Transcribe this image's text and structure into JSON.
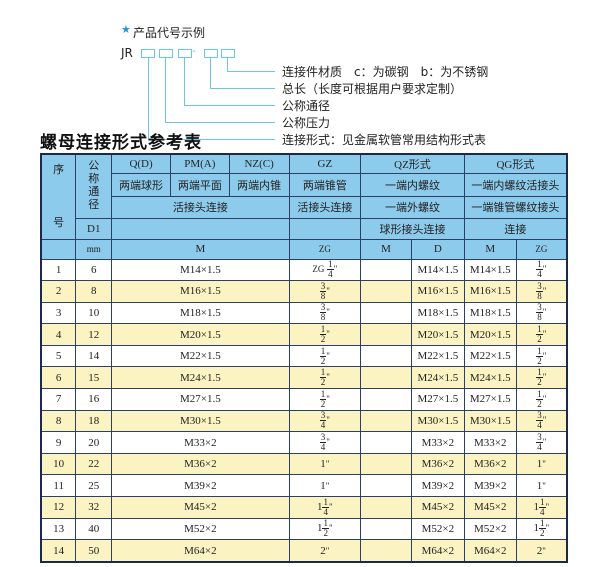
{
  "code_example": {
    "title": "产品代号示例",
    "star_icon": "star-icon",
    "prefix": "JR",
    "dash": "-",
    "labels": [
      "连接件材质　c：为碳钢　b：为不锈钢",
      "总长（长度可根据用户要求定制）",
      "公称通径",
      "公称压力",
      "连接形式：见金属软管常用结构形式表"
    ]
  },
  "table_title": "螺母连接形式参考表",
  "header": {
    "seq": "序号",
    "nominal": "公称通径",
    "d1": "D1",
    "mm": "mm",
    "qd": "Q(D)",
    "pm": "PM(A)",
    "nz": "NZ(C)",
    "gz": "GZ",
    "qz": "QZ形式",
    "qg": "QG形式",
    "qd_desc": "两端球形",
    "pm_desc": "两端平面",
    "nz_desc": "两端内锥",
    "gz_desc": "两端锥管",
    "qz_desc": "一端内螺纹",
    "qg_desc": "一端内螺纹活接头",
    "union": "活接头连接",
    "gz_union": "活接头连接",
    "qz_desc2": "一端外螺纹",
    "qg_desc2": "一端锥管螺纹接头",
    "qz_desc3": "球形接头连接",
    "qg_desc3": "连接",
    "m": "M",
    "zg": "ZG",
    "qz_m": "M",
    "qz_d": "D",
    "qg_m": "M",
    "qg_zg": "ZG"
  },
  "rows": [
    {
      "no": "1",
      "dn": "6",
      "m": "M14×1.5",
      "zg": {
        "pre": "ZG",
        "whole": "",
        "num": "1",
        "den": "4"
      },
      "qz_m": "",
      "qz_d": "M14×1.5",
      "qg_m": "M14×1.5",
      "qg_zg": {
        "pre": "",
        "whole": "",
        "num": "1",
        "den": "4"
      }
    },
    {
      "no": "2",
      "dn": "8",
      "m": "M16×1.5",
      "zg": {
        "pre": "",
        "whole": "",
        "num": "3",
        "den": "8"
      },
      "qz_m": "",
      "qz_d": "M16×1.5",
      "qg_m": "M16×1.5",
      "qg_zg": {
        "pre": "",
        "whole": "",
        "num": "3",
        "den": "8"
      }
    },
    {
      "no": "3",
      "dn": "10",
      "m": "M18×1.5",
      "zg": {
        "pre": "",
        "whole": "",
        "num": "3",
        "den": "8"
      },
      "qz_m": "",
      "qz_d": "M18×1.5",
      "qg_m": "M18×1.5",
      "qg_zg": {
        "pre": "",
        "whole": "",
        "num": "3",
        "den": "8"
      }
    },
    {
      "no": "4",
      "dn": "12",
      "m": "M20×1.5",
      "zg": {
        "pre": "",
        "whole": "",
        "num": "1",
        "den": "2"
      },
      "qz_m": "",
      "qz_d": "M20×1.5",
      "qg_m": "M20×1.5",
      "qg_zg": {
        "pre": "",
        "whole": "",
        "num": "1",
        "den": "2"
      }
    },
    {
      "no": "5",
      "dn": "14",
      "m": "M22×1.5",
      "zg": {
        "pre": "",
        "whole": "",
        "num": "1",
        "den": "2"
      },
      "qz_m": "",
      "qz_d": "M22×1.5",
      "qg_m": "M22×1.5",
      "qg_zg": {
        "pre": "",
        "whole": "",
        "num": "1",
        "den": "2"
      }
    },
    {
      "no": "6",
      "dn": "15",
      "m": "M24×1.5",
      "zg": {
        "pre": "",
        "whole": "",
        "num": "1",
        "den": "2"
      },
      "qz_m": "",
      "qz_d": "M24×1.5",
      "qg_m": "M24×1.5",
      "qg_zg": {
        "pre": "",
        "whole": "",
        "num": "1",
        "den": "2"
      }
    },
    {
      "no": "7",
      "dn": "16",
      "m": "M27×1.5",
      "zg": {
        "pre": "",
        "whole": "",
        "num": "1",
        "den": "2"
      },
      "qz_m": "",
      "qz_d": "M27×1.5",
      "qg_m": "M27×1.5",
      "qg_zg": {
        "pre": "",
        "whole": "",
        "num": "1",
        "den": "2"
      }
    },
    {
      "no": "8",
      "dn": "18",
      "m": "M30×1.5",
      "zg": {
        "pre": "",
        "whole": "",
        "num": "3",
        "den": "4"
      },
      "qz_m": "",
      "qz_d": "M30×1.5",
      "qg_m": "M30×1.5",
      "qg_zg": {
        "pre": "",
        "whole": "",
        "num": "3",
        "den": "4"
      }
    },
    {
      "no": "9",
      "dn": "20",
      "m": "M33×2",
      "zg": {
        "pre": "",
        "whole": "",
        "num": "3",
        "den": "4"
      },
      "qz_m": "",
      "qz_d": "M33×2",
      "qg_m": "M33×2",
      "qg_zg": {
        "pre": "",
        "whole": "",
        "num": "3",
        "den": "4"
      }
    },
    {
      "no": "10",
      "dn": "22",
      "m": "M36×2",
      "zg": {
        "pre": "",
        "whole": "1",
        "num": "",
        "den": ""
      },
      "qz_m": "",
      "qz_d": "M36×2",
      "qg_m": "M36×2",
      "qg_zg": {
        "pre": "",
        "whole": "1",
        "num": "",
        "den": ""
      }
    },
    {
      "no": "11",
      "dn": "25",
      "m": "M39×2",
      "zg": {
        "pre": "",
        "whole": "1",
        "num": "",
        "den": ""
      },
      "qz_m": "",
      "qz_d": "M39×2",
      "qg_m": "M39×2",
      "qg_zg": {
        "pre": "",
        "whole": "1",
        "num": "",
        "den": ""
      }
    },
    {
      "no": "12",
      "dn": "32",
      "m": "M45×2",
      "zg": {
        "pre": "",
        "whole": "1",
        "num": "1",
        "den": "4"
      },
      "qz_m": "",
      "qz_d": "M45×2",
      "qg_m": "M45×2",
      "qg_zg": {
        "pre": "",
        "whole": "1",
        "num": "1",
        "den": "4"
      }
    },
    {
      "no": "13",
      "dn": "40",
      "m": "M52×2",
      "zg": {
        "pre": "",
        "whole": "1",
        "num": "1",
        "den": "2"
      },
      "qz_m": "",
      "qz_d": "M52×2",
      "qg_m": "M52×2",
      "qg_zg": {
        "pre": "",
        "whole": "1",
        "num": "1",
        "den": "2"
      }
    },
    {
      "no": "14",
      "dn": "50",
      "m": "M64×2",
      "zg": {
        "pre": "",
        "whole": "2",
        "num": "",
        "den": ""
      },
      "qz_m": "",
      "qz_d": "M64×2",
      "qg_m": "M64×2",
      "qg_zg": {
        "pre": "",
        "whole": "2",
        "num": "",
        "den": ""
      }
    }
  ],
  "colors": {
    "header": "#8dcbec",
    "stripe": "#fbf3c2",
    "line": "#6cc6e4",
    "star": "#1a9ad6"
  }
}
